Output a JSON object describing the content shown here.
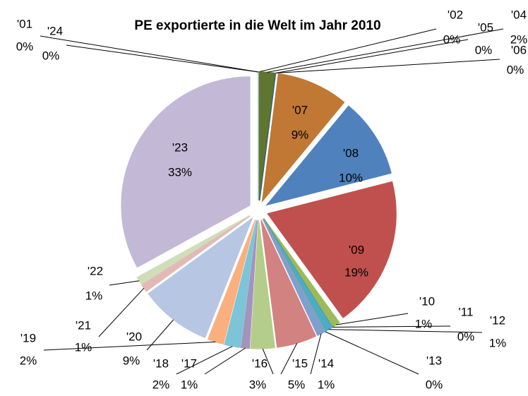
{
  "chart_data": {
    "type": "pie",
    "title": "PE exportierte in die Welt im Jahr 2010",
    "categories": [
      "'01",
      "'02",
      "'04",
      "'05",
      "'06",
      "'07",
      "'08",
      "'09",
      "'10",
      "'11",
      "'12",
      "'13",
      "'14",
      "'15",
      "'16",
      "'17",
      "'18",
      "'19",
      "'20",
      "'21",
      "'22",
      "'23",
      "'24"
    ],
    "values": [
      0,
      0,
      2,
      0,
      0,
      9,
      10,
      19,
      1,
      0,
      1,
      0,
      1,
      5,
      3,
      1,
      2,
      2,
      9,
      1,
      1,
      33,
      0
    ],
    "value_labels": [
      "0%",
      "0%",
      "2%",
      "0%",
      "0%",
      "9%",
      "10%",
      "19%",
      "1%",
      "0%",
      "1%",
      "0%",
      "1%",
      "5%",
      "3%",
      "1%",
      "2%",
      "2%",
      "9%",
      "1%",
      "1%",
      "33%",
      "0%"
    ],
    "colors": [
      "#2C4D75",
      "#772C2A",
      "#5F7530",
      "#4D3B62",
      "#276A7C",
      "#C07834",
      "#4F81BD",
      "#C0504D",
      "#9BBB59",
      "#8064A2",
      "#4BACC6",
      "#F79646",
      "#7F9FCF",
      "#D28280",
      "#B4CD8A",
      "#A393BD",
      "#7DC4D6",
      "#F9B07E",
      "#B7C6E3",
      "#E3B9B8",
      "#CFDEB8",
      "#C3B9D6",
      "#B3DEE9"
    ]
  }
}
